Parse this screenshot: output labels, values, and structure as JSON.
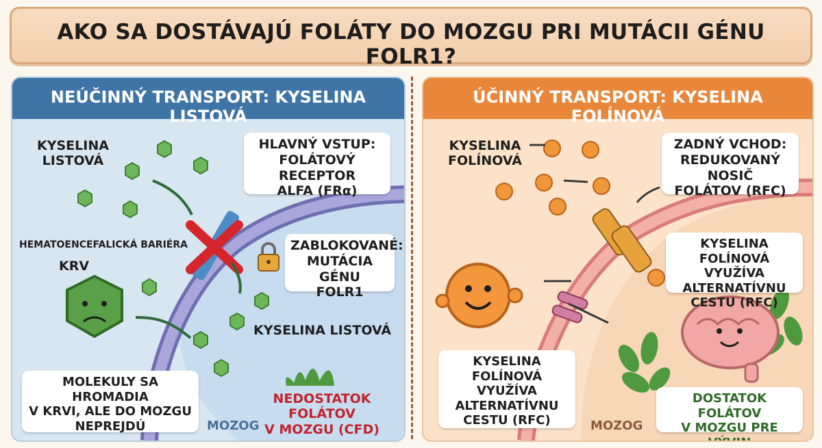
{
  "title": "AKO SA DOSTÁVAJÚ FOLÁTY DO MOZGU PRI MUTÁCII GÉNU FOLR1?",
  "left": {
    "header": "NEÚČINNÝ TRANSPORT: KYSELINA LISTOVÁ",
    "folic_label_line1": "KYSELINA",
    "folic_label_line2": "LISTOVÁ",
    "receptor_line1": "HLAVNÝ VSTUP:",
    "receptor_line2": "FOLÁTOVÝ RECEPTOR",
    "receptor_line3": "ALFA (FRα)",
    "bbb_label": "HEMATOENCEFALICKÁ BARIÉRA",
    "blood_label": "KRV",
    "blocked_line1": "ZABLOKOVANÉ:",
    "blocked_line2": "MUTÁCIA GÉNU",
    "blocked_line3": "FOLR1",
    "folic_inside_label": "KYSELINA LISTOVÁ",
    "accumulate_line1": "MOLEKULY SA HROMADIA",
    "accumulate_line2": "V KRVI, ALE DO MOZGU",
    "accumulate_line3": "NEPREJDÚ",
    "deficit_line1": "NEDOSTATOK FOLÁTOV",
    "deficit_line2": "V MOZGU (CFD)",
    "brain_label": "MOZOG"
  },
  "right": {
    "header": "ÚČINNÝ TRANSPORT: KYSELINA FOLÍNOVÁ",
    "folinic_label_line1": "KYSELINA",
    "folinic_label_line2": "FOLÍNOVÁ",
    "rfc_line1": "ZADNÝ VCHOD:",
    "rfc_line2": "REDUKOVANÝ NOSIČ",
    "rfc_line3": "FOLÁTOV (RFC)",
    "alt_line1": "KYSELINA FOLÍNOVÁ",
    "alt_line2": "VYUŽÍVA ALTERNATÍVNU",
    "alt_line3": "CESTU (RFC)",
    "alt2_line1": "KYSELINA FOLÍNOVÁ",
    "alt2_line2": "VYUŽÍVA",
    "alt2_line3": "ALTERNATÍVNU",
    "alt2_line4": "CESTU (RFC)",
    "enough_line1": "DOSTATOK FOLÁTOV",
    "enough_line2": "V MOZGU PRE VÝVIN",
    "brain_label": "MOZOG"
  },
  "colors": {
    "left_header": "#3f74a6",
    "right_header": "#e8873a",
    "folic_molecule": "#6db75a",
    "folinic_molecule": "#f0973a",
    "block_cross": "#d6262c",
    "membrane_left": "#8a88c8",
    "membrane_right": "#e88a8a"
  }
}
